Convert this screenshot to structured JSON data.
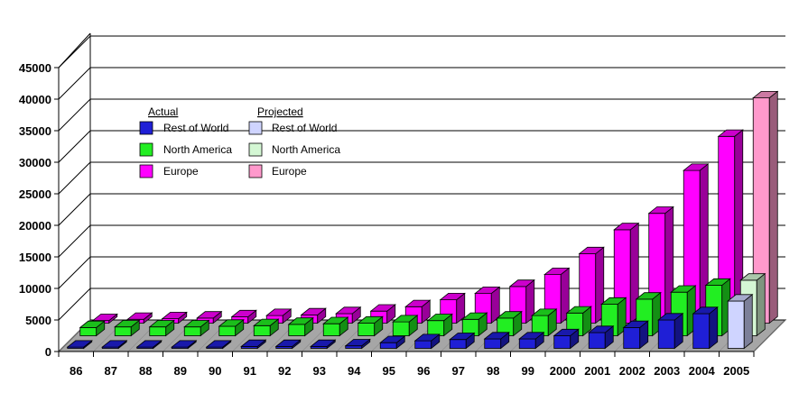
{
  "chart_data": {
    "type": "bar",
    "categories": [
      "86",
      "87",
      "88",
      "89",
      "90",
      "91",
      "92",
      "93",
      "94",
      "95",
      "96",
      "97",
      "98",
      "99",
      "2000",
      "2001",
      "2002",
      "2003",
      "2004",
      "2005"
    ],
    "yticks": [
      "0",
      "5000",
      "10000",
      "15000",
      "20000",
      "25000",
      "30000",
      "35000",
      "40000",
      "45000"
    ],
    "ylim": [
      0,
      45000
    ],
    "grid": true,
    "legend_placement": "top-left",
    "legend": {
      "actual_header": "Actual",
      "projected_header": "Projected",
      "actual": [
        {
          "name": "Rest of World",
          "color": "#1f1fd6"
        },
        {
          "name": "North America",
          "color": "#22ee22"
        },
        {
          "name": "Europe",
          "color": "#ff00ff"
        }
      ],
      "projected": [
        {
          "name": "Rest of World",
          "color": "#cfd4ff"
        },
        {
          "name": "North America",
          "color": "#d4f7d4"
        },
        {
          "name": "Europe",
          "color": "#ff99cc"
        }
      ]
    },
    "series": [
      {
        "name": "Rest of World",
        "values": [
          200,
          200,
          200,
          200,
          200,
          300,
          300,
          300,
          400,
          900,
          1200,
          1400,
          1500,
          1500,
          2000,
          2500,
          3300,
          4500,
          5500,
          7500
        ]
      },
      {
        "name": "North America",
        "values": [
          1300,
          1400,
          1400,
          1400,
          1500,
          1600,
          1800,
          1900,
          2000,
          2200,
          2400,
          2600,
          2800,
          3200,
          3600,
          5000,
          5800,
          6900,
          8000,
          8800
        ]
      },
      {
        "name": "Europe",
        "values": [
          400,
          600,
          700,
          800,
          1000,
          1200,
          1300,
          1500,
          1900,
          2600,
          3700,
          4700,
          5800,
          7700,
          11000,
          14800,
          17400,
          24200,
          29600,
          35700
        ]
      }
    ],
    "projected_from": "2005"
  }
}
